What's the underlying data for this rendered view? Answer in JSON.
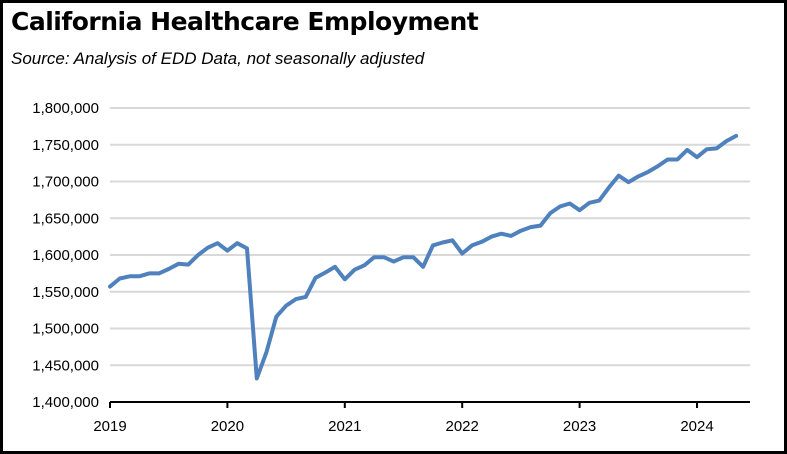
{
  "chart_data": {
    "type": "line",
    "title": "California Healthcare Employment",
    "subtitle": "Source:  Analysis of EDD Data, not seasonally adjusted",
    "xlabel": "",
    "ylabel": "",
    "ylim": [
      1400000,
      1800000
    ],
    "yticks": [
      "1,400,000",
      "1,450,000",
      "1,500,000",
      "1,550,000",
      "1,600,000",
      "1,650,000",
      "1,700,000",
      "1,750,000",
      "1,800,000"
    ],
    "xticks": [
      "2019",
      "2020",
      "2021",
      "2022",
      "2023",
      "2024"
    ],
    "grid": true,
    "x_start": "2019-01",
    "x_frequency": "monthly",
    "series": [
      {
        "name": "Healthcare Employment",
        "color": "#4F81BD",
        "values": [
          1557000,
          1568000,
          1571000,
          1571000,
          1575000,
          1575000,
          1581000,
          1588000,
          1587000,
          1600000,
          1610000,
          1616000,
          1606000,
          1616000,
          1609000,
          1432000,
          1468000,
          1516000,
          1531000,
          1540000,
          1543000,
          1569000,
          1576000,
          1584000,
          1567000,
          1580000,
          1586000,
          1597000,
          1597000,
          1591000,
          1597000,
          1597000,
          1584000,
          1613000,
          1617000,
          1620000,
          1602000,
          1613000,
          1618000,
          1625000,
          1629000,
          1626000,
          1633000,
          1638000,
          1640000,
          1657000,
          1666000,
          1670000,
          1661000,
          1671000,
          1674000,
          1692000,
          1708000,
          1699000,
          1707000,
          1713000,
          1721000,
          1730000,
          1730000,
          1743000,
          1733000,
          1744000,
          1745000,
          1755000,
          1762000
        ]
      }
    ]
  }
}
